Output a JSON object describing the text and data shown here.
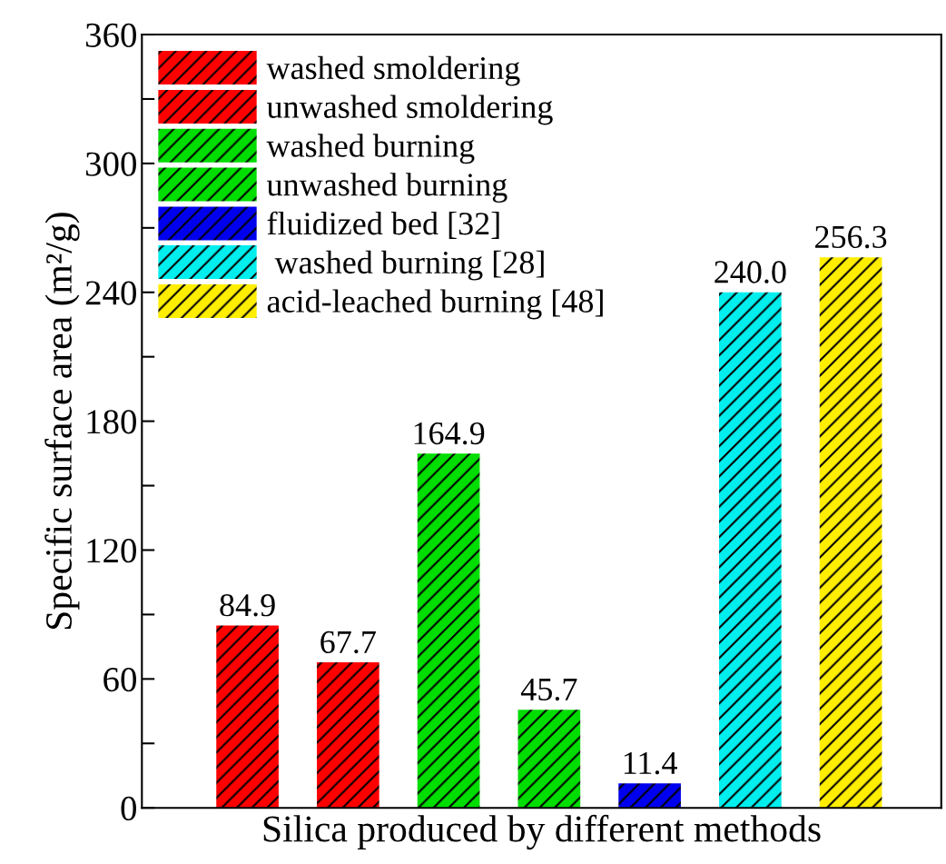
{
  "chart_data": {
    "type": "bar",
    "xlabel": "Silica produced by different methods",
    "ylabel": "Specific surface area (m²/g)",
    "categories": [
      null,
      null,
      null,
      null,
      null,
      null,
      null
    ],
    "series": [
      {
        "name": "washed smoldering",
        "color": "#ff0000",
        "values": [
          84.9,
          null,
          null,
          null,
          null,
          null,
          null
        ],
        "value_labels": [
          "84.9",
          null,
          null,
          null,
          null,
          null,
          null
        ]
      },
      {
        "name": "unwashed smoldering",
        "color": "#ff0000",
        "values": [
          null,
          67.7,
          null,
          null,
          null,
          null,
          null
        ],
        "value_labels": [
          null,
          "67.7",
          null,
          null,
          null,
          null,
          null
        ]
      },
      {
        "name": "washed burning",
        "color": "#00dd00",
        "values": [
          null,
          null,
          164.9,
          null,
          null,
          null,
          null
        ],
        "value_labels": [
          null,
          null,
          "164.9",
          null,
          null,
          null,
          null
        ]
      },
      {
        "name": "unwashed burning",
        "color": "#00dd00",
        "values": [
          null,
          null,
          null,
          45.7,
          null,
          null,
          null
        ],
        "value_labels": [
          null,
          null,
          null,
          "45.7",
          null,
          null,
          null
        ]
      },
      {
        "name": "fluidized bed [32]",
        "color": "#0000ee",
        "values": [
          null,
          null,
          null,
          null,
          11.4,
          null,
          null
        ],
        "value_labels": [
          null,
          null,
          null,
          null,
          "11.4",
          null,
          null
        ]
      },
      {
        "name": " washed burning [28]",
        "color": "#00eeee",
        "values": [
          null,
          null,
          null,
          null,
          null,
          240.0,
          null
        ],
        "value_labels": [
          null,
          null,
          null,
          null,
          null,
          "240.0",
          null
        ]
      },
      {
        "name": "acid-leached burning [48]",
        "color": "#ffee00",
        "values": [
          null,
          null,
          null,
          null,
          null,
          null,
          256.3
        ],
        "value_labels": [
          null,
          null,
          null,
          null,
          null,
          null,
          "256.3"
        ]
      }
    ],
    "ylim": [
      0,
      360
    ],
    "yticks": [
      0,
      {
        "value": 30,
        "label": null
      },
      60,
      {
        "value": 90,
        "label": null
      },
      120,
      {
        "value": 150,
        "label": null
      },
      180,
      {
        "value": 210,
        "label": null
      },
      240,
      {
        "value": 270,
        "label": null
      },
      300,
      {
        "value": 330,
        "label": null
      },
      360
    ],
    "legend": "top left",
    "grid": false
  }
}
